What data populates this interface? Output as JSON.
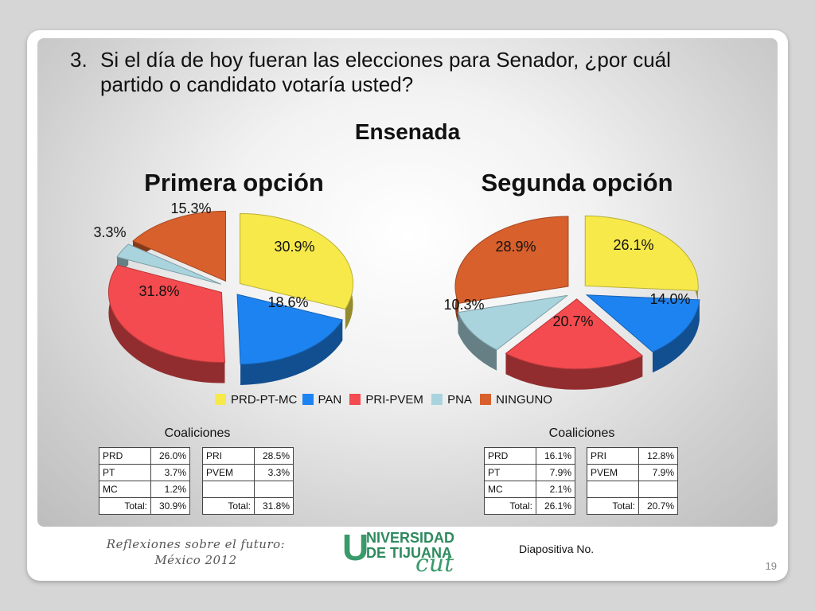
{
  "question": {
    "number": "3.",
    "line1": "Si el día de hoy fueran las elecciones para Senador, ¿por cuál",
    "line2": "partido o candidato votaría usted?"
  },
  "city": "Ensenada",
  "legend": [
    {
      "label": "PRD-PT-MC",
      "color": "#f7e94a"
    },
    {
      "label": "PAN",
      "color": "#1d83f0"
    },
    {
      "label": "PRI-PVEM",
      "color": "#f34b4f"
    },
    {
      "label": "PNA",
      "color": "#a9d4de"
    },
    {
      "label": "NINGUNO",
      "color": "#d8602c"
    }
  ],
  "chart_data": [
    {
      "type": "pie",
      "title": "Primera opción",
      "categories": [
        "PRD-PT-MC",
        "PAN",
        "PRI-PVEM",
        "PNA",
        "NINGUNO"
      ],
      "values": [
        30.9,
        18.6,
        31.8,
        3.3,
        15.3
      ],
      "labels": [
        "30.9%",
        "18.6%",
        "31.8%",
        "3.3%",
        "15.3%"
      ],
      "exploded": true,
      "legend": "bottom"
    },
    {
      "type": "pie",
      "title": "Segunda opción",
      "categories": [
        "PRD-PT-MC",
        "PAN",
        "PRI-PVEM",
        "PNA",
        "NINGUNO"
      ],
      "values": [
        26.1,
        14.0,
        20.7,
        10.3,
        28.9
      ],
      "labels": [
        "26.1%",
        "14.0%",
        "20.7%",
        "10.3%",
        "28.9%"
      ],
      "exploded": true,
      "legend": "bottom"
    }
  ],
  "coalitions": [
    {
      "title": "Coaliciones",
      "left": {
        "rows": [
          [
            "PRD",
            "26.0%"
          ],
          [
            "PT",
            "3.7%"
          ],
          [
            "MC",
            "1.2%"
          ]
        ],
        "total_label": "Total:",
        "total": "30.9%"
      },
      "right": {
        "rows": [
          [
            "PRI",
            "28.5%"
          ],
          [
            "PVEM",
            "3.3%"
          ],
          [
            "",
            ""
          ]
        ],
        "total_label": "Total:",
        "total": "31.8%"
      }
    },
    {
      "title": "Coaliciones",
      "left": {
        "rows": [
          [
            "PRD",
            "16.1%"
          ],
          [
            "PT",
            "7.9%"
          ],
          [
            "MC",
            "2.1%"
          ]
        ],
        "total_label": "Total:",
        "total": "26.1%"
      },
      "right": {
        "rows": [
          [
            "PRI",
            "12.8%"
          ],
          [
            "PVEM",
            "7.9%"
          ],
          [
            "",
            ""
          ]
        ],
        "total_label": "Total:",
        "total": "20.7%"
      }
    }
  ],
  "footer": {
    "line1": "Reflexiones sobre el futuro:",
    "line2": "México 2012",
    "logo_line1": "NIVERSIDAD",
    "logo_line2": "DE TIJUANA",
    "logo_letter": "U",
    "logo_cut": "cut",
    "diapositiva": "Diapositiva No.",
    "page_number": "19"
  }
}
